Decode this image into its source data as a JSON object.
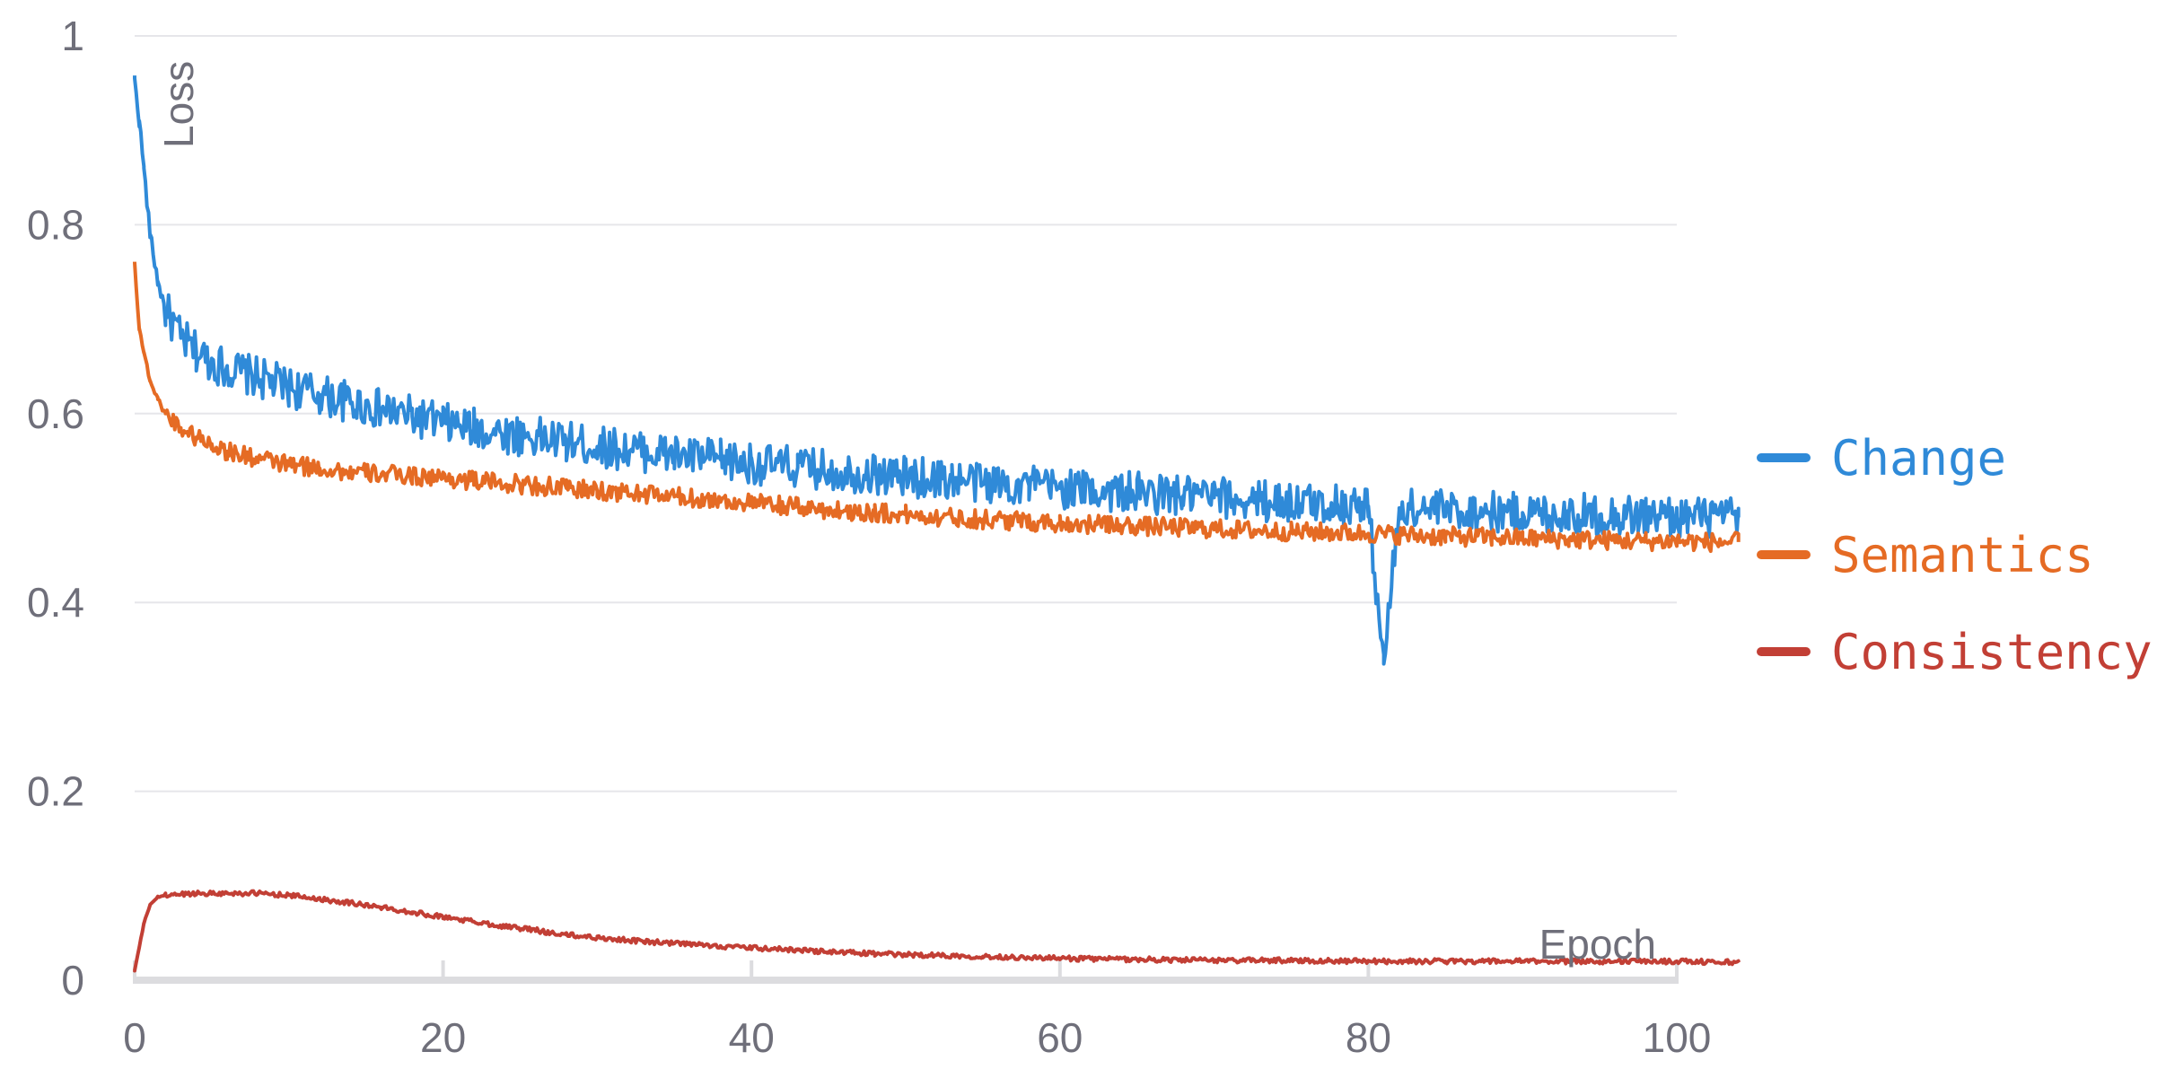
{
  "chart_data": {
    "type": "line",
    "xlabel": "Epoch",
    "ylabel": "Loss",
    "xlim": [
      0,
      104
    ],
    "ylim": [
      0,
      1
    ],
    "x_ticks": [
      0,
      20,
      40,
      60,
      80,
      100
    ],
    "y_ticks": [
      0,
      0.2,
      0.4,
      0.6,
      0.8,
      1
    ],
    "y_tick_labels": [
      "0",
      "0.2",
      "0.4",
      "0.6",
      "0.8",
      "1"
    ],
    "grid": true,
    "legend_position": "right",
    "series": [
      {
        "name": "Change",
        "color": "#2f8ad8",
        "x": [
          0,
          0.3,
          0.6,
          1,
          1.5,
          2,
          3,
          4,
          5,
          6,
          8,
          10,
          12,
          14,
          16,
          18,
          20,
          22,
          25,
          28,
          30,
          33,
          35,
          38,
          40,
          43,
          45,
          48,
          50,
          53,
          55,
          58,
          60,
          63,
          65,
          68,
          70,
          73,
          75,
          78,
          80,
          81,
          82,
          85,
          88,
          90,
          93,
          95,
          98,
          100,
          102,
          104
        ],
        "y": [
          0.955,
          0.91,
          0.86,
          0.79,
          0.74,
          0.71,
          0.68,
          0.665,
          0.655,
          0.648,
          0.638,
          0.628,
          0.62,
          0.612,
          0.604,
          0.597,
          0.59,
          0.584,
          0.577,
          0.57,
          0.565,
          0.56,
          0.556,
          0.551,
          0.547,
          0.543,
          0.54,
          0.536,
          0.533,
          0.53,
          0.527,
          0.524,
          0.521,
          0.518,
          0.516,
          0.513,
          0.511,
          0.508,
          0.506,
          0.504,
          0.502,
          0.335,
          0.5,
          0.498,
          0.496,
          0.495,
          0.494,
          0.493,
          0.492,
          0.491,
          0.49,
          0.49
        ]
      },
      {
        "name": "Semantics",
        "color": "#e56b24",
        "x": [
          0,
          0.3,
          0.6,
          1,
          1.5,
          2,
          3,
          4,
          5,
          6,
          8,
          10,
          12,
          14,
          16,
          18,
          20,
          22,
          25,
          28,
          30,
          33,
          35,
          38,
          40,
          43,
          45,
          48,
          50,
          53,
          55,
          58,
          60,
          63,
          65,
          68,
          70,
          73,
          75,
          78,
          80,
          83,
          85,
          88,
          90,
          93,
          95,
          98,
          100,
          102,
          104
        ],
        "y": [
          0.76,
          0.69,
          0.665,
          0.635,
          0.615,
          0.6,
          0.585,
          0.575,
          0.568,
          0.56,
          0.552,
          0.546,
          0.542,
          0.538,
          0.536,
          0.534,
          0.532,
          0.529,
          0.525,
          0.521,
          0.518,
          0.515,
          0.512,
          0.508,
          0.505,
          0.501,
          0.498,
          0.495,
          0.493,
          0.49,
          0.488,
          0.486,
          0.484,
          0.482,
          0.481,
          0.479,
          0.478,
          0.476,
          0.475,
          0.474,
          0.473,
          0.471,
          0.47,
          0.469,
          0.468,
          0.467,
          0.466,
          0.465,
          0.465,
          0.464,
          0.464
        ]
      },
      {
        "name": "Consistency",
        "color": "#c23f35",
        "x": [
          0,
          0.3,
          0.6,
          1,
          1.5,
          2,
          3,
          4,
          6,
          8,
          10,
          12,
          14,
          16,
          18,
          20,
          22,
          24,
          26,
          27,
          28,
          30,
          33,
          35,
          38,
          40,
          43,
          45,
          48,
          50,
          53,
          55,
          58,
          60,
          65,
          70,
          75,
          80,
          85,
          90,
          95,
          100,
          104
        ],
        "y": [
          0.01,
          0.035,
          0.06,
          0.08,
          0.088,
          0.09,
          0.091,
          0.092,
          0.092,
          0.092,
          0.09,
          0.086,
          0.082,
          0.077,
          0.072,
          0.067,
          0.062,
          0.057,
          0.053,
          0.05,
          0.048,
          0.045,
          0.041,
          0.039,
          0.036,
          0.034,
          0.032,
          0.03,
          0.028,
          0.027,
          0.026,
          0.025,
          0.024,
          0.023,
          0.022,
          0.021,
          0.021,
          0.02,
          0.02,
          0.02,
          0.02,
          0.02,
          0.019
        ]
      }
    ]
  }
}
